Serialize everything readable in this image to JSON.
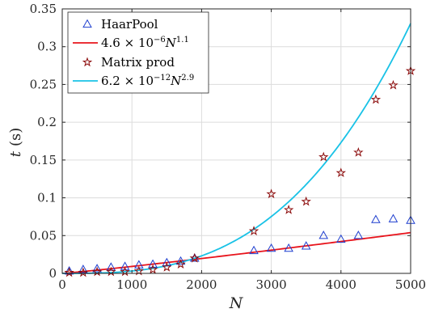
{
  "chart_data": {
    "type": "scatter",
    "xlabel": "N",
    "ylabel_var": "t",
    "ylabel_unit": "(s)",
    "xlim": [
      0,
      5000
    ],
    "ylim": [
      0,
      0.35
    ],
    "xticks": [
      0,
      1000,
      2000,
      3000,
      4000,
      5000
    ],
    "yticks": [
      0,
      0.05,
      0.1,
      0.15,
      0.2,
      0.25,
      0.3,
      0.35
    ],
    "grid": true,
    "legend_position": "top-left",
    "series": [
      {
        "name": "HaarPool",
        "kind": "markers",
        "marker": "triangle",
        "color": "#1f3fcf",
        "points": [
          [
            100,
            0.003
          ],
          [
            300,
            0.005
          ],
          [
            500,
            0.006
          ],
          [
            700,
            0.008
          ],
          [
            900,
            0.009
          ],
          [
            1100,
            0.011
          ],
          [
            1300,
            0.012
          ],
          [
            1500,
            0.014
          ],
          [
            1700,
            0.016
          ],
          [
            1900,
            0.02
          ],
          [
            2750,
            0.03
          ],
          [
            3000,
            0.033
          ],
          [
            3250,
            0.033
          ],
          [
            3500,
            0.036
          ],
          [
            3750,
            0.05
          ],
          [
            4000,
            0.045
          ],
          [
            4250,
            0.05
          ],
          [
            4500,
            0.071
          ],
          [
            4750,
            0.072
          ],
          [
            5000,
            0.07
          ]
        ]
      },
      {
        "name_parts": [
          "4.6 × 10",
          "−6",
          "N",
          "1.1"
        ],
        "kind": "curve",
        "color": "#e8141c",
        "coef": 4.6e-06,
        "exponent": 1.1
      },
      {
        "name": "Matrix prod",
        "kind": "markers",
        "marker": "star",
        "color": "#8b0a0a",
        "points": [
          [
            100,
            0.001
          ],
          [
            300,
            0.001
          ],
          [
            500,
            0.002
          ],
          [
            700,
            0.002
          ],
          [
            900,
            0.002
          ],
          [
            1100,
            0.003
          ],
          [
            1300,
            0.005
          ],
          [
            1500,
            0.008
          ],
          [
            1700,
            0.012
          ],
          [
            1900,
            0.02
          ],
          [
            2750,
            0.056
          ],
          [
            3000,
            0.105
          ],
          [
            3250,
            0.084
          ],
          [
            3500,
            0.095
          ],
          [
            3750,
            0.154
          ],
          [
            4000,
            0.133
          ],
          [
            4250,
            0.16
          ],
          [
            4500,
            0.23
          ],
          [
            4750,
            0.249
          ],
          [
            5000,
            0.268
          ]
        ]
      },
      {
        "name_parts": [
          "6.2 × 10",
          "−12",
          "N",
          "2.9"
        ],
        "kind": "curve",
        "color": "#19c2e6",
        "coef": 6.2e-12,
        "exponent": 2.9
      }
    ]
  }
}
